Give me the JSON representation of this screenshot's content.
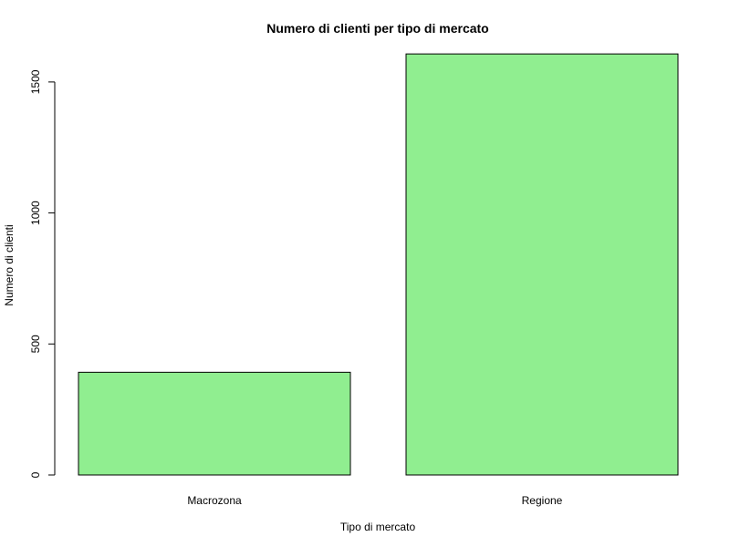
{
  "chart_data": {
    "type": "bar",
    "title": "Numero di clienti per tipo di mercato",
    "xlabel": "Tipo di mercato",
    "ylabel": "Numero di clienti",
    "categories": [
      "Macrozona",
      "Regione"
    ],
    "values": [
      392,
      1607
    ],
    "ylim": [
      0,
      1650
    ],
    "yticks": [
      0,
      500,
      1000,
      1500
    ],
    "grid": false,
    "colors": {
      "bar_fill": "#90EE90",
      "bar_stroke": "#000000"
    }
  }
}
